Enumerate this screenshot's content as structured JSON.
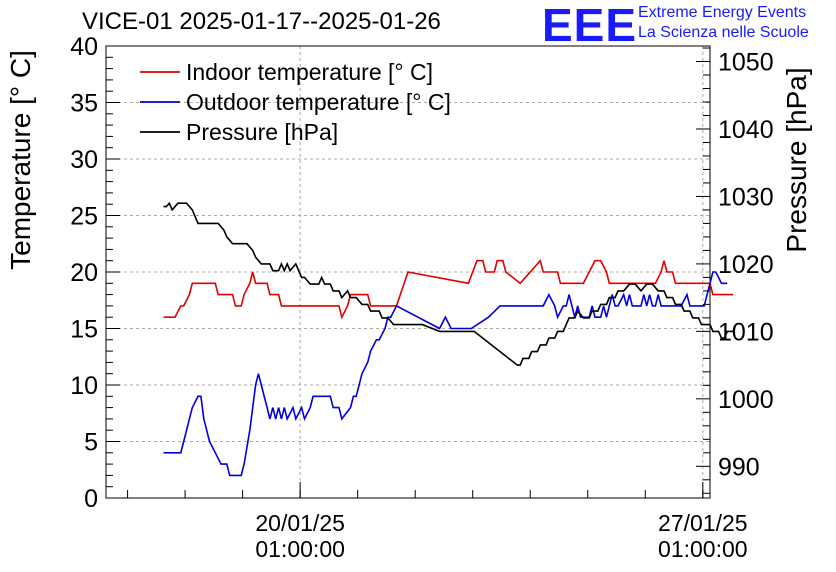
{
  "title": "VICE-01 2025-01-17--2025-01-26",
  "logo": {
    "text": "EEE",
    "line1": "Extreme Energy Events",
    "line2": "La Scienza nelle Scuole",
    "color": "#1a1aff"
  },
  "chart_data": {
    "type": "line",
    "xaxis": {
      "unit": "days",
      "range": [
        0,
        10.5
      ],
      "ticks": [
        {
          "x": 3.375,
          "line1": "20/01/25",
          "line2": "01:00:00"
        },
        {
          "x": 10.375,
          "line1": "27/01/25",
          "line2": "01:00:00"
        }
      ]
    },
    "ylabel_left": "Temperature [° C]",
    "ylabel_right": "Pressure [hPa]",
    "ylim_left": [
      0,
      40
    ],
    "ylim_right": [
      985.3,
      1052.3
    ],
    "yticks_left": [
      0,
      5,
      10,
      15,
      20,
      25,
      30,
      35,
      40
    ],
    "yticks_right": [
      990,
      1000,
      1010,
      1020,
      1030,
      1040,
      1050
    ],
    "grid": true,
    "legend_position": "top-left",
    "series": [
      {
        "name": "Indoor temperature [° C]",
        "color": "#e00000",
        "axis": "left",
        "points": [
          [
            1,
            16
          ],
          [
            1.2,
            16
          ],
          [
            1.3,
            17
          ],
          [
            1.35,
            17
          ],
          [
            1.45,
            18
          ],
          [
            1.5,
            19
          ],
          [
            1.9,
            19
          ],
          [
            1.95,
            18
          ],
          [
            2.2,
            18
          ],
          [
            2.25,
            17
          ],
          [
            2.35,
            17
          ],
          [
            2.4,
            18
          ],
          [
            2.5,
            19
          ],
          [
            2.55,
            20
          ],
          [
            2.6,
            19
          ],
          [
            2.8,
            19
          ],
          [
            2.85,
            18
          ],
          [
            3.0,
            18
          ],
          [
            3.05,
            17
          ],
          [
            4.05,
            17
          ],
          [
            4.1,
            16
          ],
          [
            4.2,
            17
          ],
          [
            4.25,
            18
          ],
          [
            4.55,
            18
          ],
          [
            4.6,
            17
          ],
          [
            5.05,
            17
          ],
          [
            5.25,
            20
          ],
          [
            6.3,
            19
          ],
          [
            6.45,
            21
          ],
          [
            6.55,
            21
          ],
          [
            6.6,
            20
          ],
          [
            6.75,
            20
          ],
          [
            6.8,
            21
          ],
          [
            6.9,
            21
          ],
          [
            6.95,
            20
          ],
          [
            7.2,
            19
          ],
          [
            7.55,
            21
          ],
          [
            7.6,
            20
          ],
          [
            7.85,
            20
          ],
          [
            7.9,
            19
          ],
          [
            8.3,
            19
          ],
          [
            8.4,
            20
          ],
          [
            8.5,
            21
          ],
          [
            8.6,
            21
          ],
          [
            8.7,
            20
          ],
          [
            8.75,
            19
          ],
          [
            9.55,
            19
          ],
          [
            9.65,
            20
          ],
          [
            9.7,
            21
          ],
          [
            9.75,
            20
          ],
          [
            9.85,
            20
          ],
          [
            9.9,
            19
          ],
          [
            10.5,
            19
          ],
          [
            10.55,
            18
          ],
          [
            10.9,
            18
          ]
        ]
      },
      {
        "name": "Outdoor temperature [° C]",
        "color": "#0000dd",
        "axis": "left",
        "points": [
          [
            1,
            4
          ],
          [
            1.3,
            4
          ],
          [
            1.35,
            5
          ],
          [
            1.5,
            8
          ],
          [
            1.6,
            9
          ],
          [
            1.65,
            9
          ],
          [
            1.7,
            7
          ],
          [
            1.75,
            6
          ],
          [
            1.8,
            5
          ],
          [
            1.9,
            4
          ],
          [
            2.0,
            3
          ],
          [
            2.1,
            3
          ],
          [
            2.15,
            2
          ],
          [
            2.35,
            2
          ],
          [
            2.4,
            3
          ],
          [
            2.5,
            6
          ],
          [
            2.6,
            10
          ],
          [
            2.65,
            11
          ],
          [
            2.7,
            10
          ],
          [
            2.8,
            8
          ],
          [
            2.85,
            7
          ],
          [
            2.9,
            8
          ],
          [
            2.95,
            7
          ],
          [
            3.0,
            8
          ],
          [
            3.05,
            7
          ],
          [
            3.1,
            8
          ],
          [
            3.15,
            7
          ],
          [
            3.25,
            8
          ],
          [
            3.3,
            7
          ],
          [
            3.4,
            8
          ],
          [
            3.45,
            7
          ],
          [
            3.55,
            8
          ],
          [
            3.6,
            9
          ],
          [
            3.9,
            9
          ],
          [
            3.95,
            8
          ],
          [
            4.05,
            8
          ],
          [
            4.1,
            7
          ],
          [
            4.25,
            8
          ],
          [
            4.3,
            9
          ],
          [
            4.35,
            9
          ],
          [
            4.45,
            11
          ],
          [
            4.55,
            12
          ],
          [
            4.6,
            13
          ],
          [
            4.7,
            14
          ],
          [
            4.75,
            14
          ],
          [
            4.85,
            15
          ],
          [
            4.9,
            16
          ],
          [
            4.95,
            16
          ],
          [
            5.05,
            17
          ],
          [
            5.8,
            15
          ],
          [
            5.9,
            16
          ],
          [
            6.0,
            15
          ],
          [
            6.35,
            15
          ],
          [
            6.65,
            16
          ],
          [
            6.85,
            17
          ],
          [
            7.6,
            17
          ],
          [
            7.7,
            18
          ],
          [
            7.8,
            17
          ],
          [
            7.85,
            16
          ],
          [
            7.95,
            17
          ],
          [
            8.0,
            17
          ],
          [
            8.05,
            18
          ],
          [
            8.1,
            17
          ],
          [
            8.15,
            16
          ],
          [
            8.2,
            17
          ],
          [
            8.25,
            16
          ],
          [
            8.4,
            16
          ],
          [
            8.45,
            17
          ],
          [
            8.5,
            16
          ],
          [
            8.6,
            16
          ],
          [
            8.65,
            17
          ],
          [
            8.7,
            16
          ],
          [
            8.75,
            17
          ],
          [
            8.8,
            18
          ],
          [
            8.85,
            17
          ],
          [
            8.9,
            17
          ],
          [
            9.0,
            18
          ],
          [
            9.05,
            17
          ],
          [
            9.1,
            18
          ],
          [
            9.15,
            17
          ],
          [
            9.3,
            17
          ],
          [
            9.35,
            18
          ],
          [
            9.4,
            17
          ],
          [
            9.45,
            18
          ],
          [
            9.5,
            17
          ],
          [
            9.55,
            17
          ],
          [
            9.6,
            18
          ],
          [
            9.65,
            17
          ],
          [
            9.75,
            17
          ],
          [
            10.0,
            17
          ],
          [
            10.1,
            18
          ],
          [
            10.15,
            17
          ],
          [
            10.4,
            17
          ],
          [
            10.45,
            18
          ],
          [
            10.5,
            19
          ],
          [
            10.55,
            20
          ],
          [
            10.6,
            20
          ],
          [
            10.7,
            19
          ],
          [
            10.8,
            19
          ]
        ]
      },
      {
        "name": "Pressure [hPa]",
        "color": "#000000",
        "axis": "right",
        "points": [
          [
            1,
            1028.5
          ],
          [
            1.05,
            1028.5
          ],
          [
            1.1,
            1029
          ],
          [
            1.15,
            1028
          ],
          [
            1.25,
            1029
          ],
          [
            1.4,
            1029
          ],
          [
            1.5,
            1028
          ],
          [
            1.55,
            1027
          ],
          [
            1.6,
            1026
          ],
          [
            1.75,
            1026
          ],
          [
            1.95,
            1026
          ],
          [
            2.05,
            1025
          ],
          [
            2.1,
            1024
          ],
          [
            2.2,
            1023
          ],
          [
            2.3,
            1023
          ],
          [
            2.45,
            1023
          ],
          [
            2.55,
            1022
          ],
          [
            2.6,
            1021
          ],
          [
            2.7,
            1020
          ],
          [
            2.85,
            1020
          ],
          [
            2.9,
            1019
          ],
          [
            3.0,
            1019
          ],
          [
            3.05,
            1020
          ],
          [
            3.1,
            1019
          ],
          [
            3.15,
            1020
          ],
          [
            3.2,
            1019
          ],
          [
            3.3,
            1020
          ],
          [
            3.35,
            1019
          ],
          [
            3.4,
            1018
          ],
          [
            3.45,
            1018
          ],
          [
            3.55,
            1017
          ],
          [
            3.7,
            1017
          ],
          [
            3.75,
            1018
          ],
          [
            3.8,
            1017
          ],
          [
            3.9,
            1017
          ],
          [
            3.95,
            1016
          ],
          [
            4.05,
            1016
          ],
          [
            4.1,
            1015
          ],
          [
            4.2,
            1016
          ],
          [
            4.25,
            1015
          ],
          [
            4.35,
            1015
          ],
          [
            4.45,
            1014
          ],
          [
            4.55,
            1014
          ],
          [
            4.6,
            1013
          ],
          [
            4.75,
            1013
          ],
          [
            4.8,
            1012
          ],
          [
            4.9,
            1012
          ],
          [
            5.0,
            1011
          ],
          [
            5.2,
            1011
          ],
          [
            5.3,
            1011
          ],
          [
            5.5,
            1011
          ],
          [
            5.8,
            1010
          ],
          [
            6.25,
            1010
          ],
          [
            6.4,
            1010
          ],
          [
            6.7,
            1008
          ],
          [
            7.0,
            1006
          ],
          [
            7.15,
            1005
          ],
          [
            7.2,
            1005
          ],
          [
            7.25,
            1006
          ],
          [
            7.35,
            1006
          ],
          [
            7.4,
            1007
          ],
          [
            7.5,
            1007
          ],
          [
            7.55,
            1008
          ],
          [
            7.65,
            1008
          ],
          [
            7.7,
            1009
          ],
          [
            7.8,
            1009
          ],
          [
            7.85,
            1010
          ],
          [
            7.95,
            1010
          ],
          [
            8.0,
            1011
          ],
          [
            8.05,
            1012
          ],
          [
            8.15,
            1012
          ],
          [
            8.2,
            1013
          ],
          [
            8.3,
            1012
          ],
          [
            8.4,
            1012
          ],
          [
            8.45,
            1013
          ],
          [
            8.55,
            1013
          ],
          [
            8.6,
            1014
          ],
          [
            8.7,
            1014
          ],
          [
            8.75,
            1015
          ],
          [
            8.85,
            1015
          ],
          [
            8.9,
            1016
          ],
          [
            9.0,
            1016
          ],
          [
            9.1,
            1017
          ],
          [
            9.2,
            1017
          ],
          [
            9.3,
            1016
          ],
          [
            9.4,
            1017
          ],
          [
            9.5,
            1017
          ],
          [
            9.6,
            1016
          ],
          [
            9.7,
            1016
          ],
          [
            9.75,
            1015
          ],
          [
            9.85,
            1015
          ],
          [
            9.9,
            1014
          ],
          [
            10.0,
            1014
          ],
          [
            10.05,
            1013
          ],
          [
            10.15,
            1013
          ],
          [
            10.2,
            1012
          ],
          [
            10.3,
            1012
          ],
          [
            10.35,
            1011
          ],
          [
            10.5,
            1011
          ],
          [
            10.55,
            1010
          ],
          [
            10.65,
            1010
          ],
          [
            10.7,
            1009
          ],
          [
            10.75,
            1009
          ],
          [
            10.8,
            1010
          ],
          [
            10.9,
            1010
          ],
          [
            10.95,
            1011
          ]
        ]
      }
    ]
  }
}
